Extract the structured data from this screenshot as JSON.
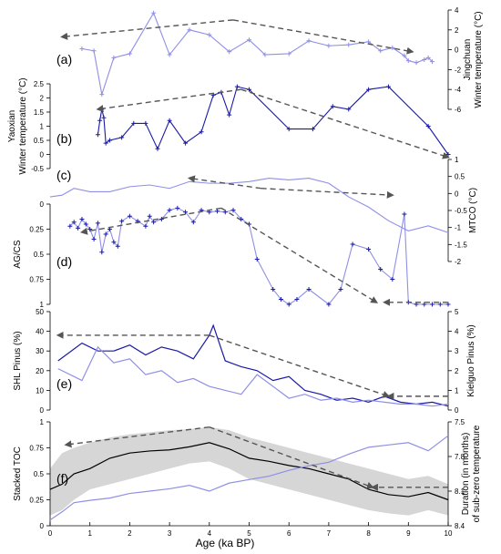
{
  "figure": {
    "xaxis": {
      "label": "Age (ka BP)",
      "ticks": [
        "0",
        "1",
        "2",
        "3",
        "4",
        "5",
        "6",
        "7",
        "8",
        "9",
        "10"
      ]
    },
    "colors": {
      "dark": "#1a1aa6",
      "light": "#8f8fe6",
      "gray": "#555555",
      "band": "#d6d6d6",
      "black": "#000000"
    }
  },
  "chart_data": [
    {
      "id": "a",
      "type": "line",
      "panel_label": "(a)",
      "ylabel": "Jingchuan\nWinter temperature (°C)",
      "yaxis_side": "right",
      "ylim": [
        -6,
        4
      ],
      "yticks": [
        "4",
        "2",
        "0",
        "-2",
        "-4",
        "-6"
      ],
      "color": "light",
      "series": [
        {
          "x": [
            0.8,
            1.1,
            1.3,
            1.6,
            2.0,
            2.6,
            3.0,
            3.5,
            4.0,
            4.5,
            5.0,
            5.4,
            6.0,
            6.5,
            7.0,
            7.5,
            8.0,
            8.3,
            8.6,
            8.9,
            9.0,
            9.2,
            9.4,
            9.5,
            9.6
          ],
          "y": [
            0.1,
            -0.1,
            -4.5,
            -0.8,
            -0.4,
            3.7,
            -0.5,
            2.0,
            1.5,
            -0.2,
            1.0,
            -0.5,
            -0.4,
            0.9,
            0.4,
            0.5,
            0.8,
            -0.1,
            0.2,
            -0.6,
            -1.1,
            -1.3,
            -1.0,
            -0.8,
            -1.2
          ]
        }
      ],
      "trend_arrows": [
        {
          "x": [
            4.6,
            0.3
          ],
          "y": [
            3.0,
            1.3
          ]
        },
        {
          "x": [
            4.6,
            9.1
          ],
          "y": [
            3.0,
            -0.2
          ]
        }
      ]
    },
    {
      "id": "b",
      "type": "line",
      "panel_label": "(b)",
      "ylabel": "Yaoxian\nWinter temperature (°C)",
      "yaxis_side": "left",
      "ylim": [
        -0.5,
        2.5
      ],
      "yticks": [
        "2.5",
        "2",
        "1.5",
        "1",
        "0.5",
        "0",
        "-0.5"
      ],
      "color": "dark",
      "series": [
        {
          "x": [
            1.2,
            1.25,
            1.3,
            1.35,
            1.4,
            1.5,
            1.8,
            2.1,
            2.4,
            2.7,
            3.0,
            3.4,
            3.8,
            4.1,
            4.3,
            4.5,
            4.7,
            5.0,
            6.0,
            6.6,
            7.1,
            7.5,
            8.0,
            8.5,
            9.5,
            10.0
          ],
          "y": [
            0.7,
            1.2,
            1.6,
            1.3,
            0.4,
            0.5,
            0.6,
            1.1,
            1.1,
            0.2,
            1.2,
            0.4,
            0.8,
            2.1,
            2.2,
            1.4,
            2.4,
            2.3,
            0.9,
            0.9,
            1.7,
            1.6,
            2.3,
            2.4,
            1.0,
            0.0
          ]
        }
      ],
      "trend_arrows": [
        {
          "x": [
            4.8,
            1.2
          ],
          "y": [
            2.3,
            1.6
          ]
        },
        {
          "x": [
            4.8,
            10.0
          ],
          "y": [
            2.3,
            -0.1
          ]
        }
      ]
    },
    {
      "id": "c",
      "type": "line",
      "panel_label": "(c)",
      "ylabel": "MTCO (°C)",
      "yaxis_side": "right",
      "ylim": [
        -2,
        1
      ],
      "yticks": [
        "1",
        "0.5",
        "0",
        "-0.5",
        "-1",
        "-1.5",
        "-2"
      ],
      "color": "light",
      "series": [
        {
          "x": [
            0.0,
            0.3,
            0.6,
            1.0,
            1.5,
            2.0,
            2.5,
            3.0,
            3.5,
            4.0,
            4.5,
            5.0,
            5.5,
            6.0,
            6.5,
            7.0,
            7.5,
            8.0,
            8.5,
            9.0,
            9.5,
            10.0
          ],
          "y": [
            -0.1,
            -0.05,
            0.15,
            0.05,
            0.05,
            0.2,
            0.25,
            0.15,
            0.35,
            0.3,
            0.3,
            0.35,
            0.45,
            0.4,
            0.45,
            0.3,
            -0.1,
            -0.4,
            -0.8,
            -1.1,
            -0.95,
            -1.15
          ]
        }
      ],
      "trend_arrows": [
        {
          "x": [
            5.3,
            3.5
          ],
          "y": [
            0.15,
            0.45
          ]
        },
        {
          "x": [
            5.3,
            8.6
          ],
          "y": [
            0.15,
            -0.05
          ]
        }
      ]
    },
    {
      "id": "d",
      "type": "line",
      "panel_label": "(d)",
      "ylabel": "AG/CS",
      "yaxis_side": "left",
      "ylim": [
        1,
        0
      ],
      "yticks": [
        "0",
        "0.25",
        "0.5",
        "0.75",
        "1"
      ],
      "color": "light",
      "markers_color": "dark",
      "series": [
        {
          "x": [
            0.5,
            0.6,
            0.7,
            0.8,
            0.9,
            1.0,
            1.1,
            1.2,
            1.3,
            1.4,
            1.5,
            1.6,
            1.7,
            1.8,
            2.0,
            2.2,
            2.4,
            2.5,
            2.6,
            2.8,
            3.0,
            3.2,
            3.4,
            3.6,
            3.8,
            4.0,
            4.2,
            4.4,
            4.6,
            4.8,
            5.0,
            5.2,
            5.6,
            5.8,
            6.0,
            6.2,
            6.5,
            7.0,
            7.3,
            7.6,
            8.0,
            8.3,
            8.6,
            8.9,
            9.0,
            9.2,
            9.4,
            9.6,
            9.8,
            10.0
          ],
          "y": [
            0.22,
            0.18,
            0.24,
            0.15,
            0.2,
            0.25,
            0.35,
            0.19,
            0.48,
            0.3,
            0.25,
            0.38,
            0.42,
            0.17,
            0.12,
            0.17,
            0.22,
            0.12,
            0.18,
            0.15,
            0.06,
            0.04,
            0.08,
            0.18,
            0.06,
            0.08,
            0.07,
            0.08,
            0.06,
            0.15,
            0.2,
            0.55,
            0.85,
            0.95,
            1.0,
            0.95,
            0.85,
            1.0,
            0.85,
            0.4,
            0.45,
            0.65,
            0.75,
            0.1,
            0.98,
            1.0,
            1.0,
            1.0,
            1.0,
            1.0
          ]
        }
      ],
      "trend_arrows": [
        {
          "x": [
            4.3,
            0.8
          ],
          "y": [
            0.04,
            0.28
          ]
        },
        {
          "x": [
            4.3,
            8.2
          ],
          "y": [
            0.04,
            0.98
          ]
        },
        {
          "x": [
            10.0,
            8.4
          ],
          "y": [
            0.98,
            0.98
          ]
        }
      ]
    },
    {
      "id": "e",
      "type": "line",
      "panel_label": "(e)",
      "ylabel": "SHL Pinus (%)",
      "yaxis_side": "left",
      "ylim": [
        0,
        50
      ],
      "yticks": [
        "50",
        "40",
        "30",
        "20",
        "10",
        "0"
      ],
      "y2label": "Kielguo Pinus (%)",
      "y2lim": [
        0,
        5
      ],
      "y2ticks": [
        "5",
        "4",
        "3",
        "2",
        "1",
        "0"
      ],
      "color": "dark",
      "series_names": [
        "SHL",
        "Kielguo"
      ],
      "series": [
        {
          "x": [
            0.2,
            0.8,
            1.2,
            1.6,
            2.0,
            2.4,
            2.8,
            3.2,
            3.6,
            4.0,
            4.1,
            4.4,
            4.8,
            5.2,
            5.6,
            6.0,
            6.4,
            6.8,
            7.2,
            7.6,
            8.0,
            8.4,
            8.8,
            9.2,
            9.6,
            10.0
          ],
          "y": [
            25,
            34,
            30,
            30,
            33,
            28,
            32,
            30,
            26,
            38,
            43,
            25,
            22,
            20,
            15,
            17,
            10,
            8,
            5,
            6,
            4,
            7,
            4,
            3,
            4,
            2
          ]
        },
        {
          "x": [
            0.2,
            0.8,
            1.2,
            1.6,
            2.0,
            2.4,
            2.8,
            3.2,
            3.6,
            4.0,
            4.4,
            4.8,
            5.2,
            5.6,
            6.0,
            6.4,
            6.8,
            7.2,
            7.6,
            8.0,
            8.4,
            8.8,
            9.2,
            9.6,
            10.0
          ],
          "y": [
            2.1,
            1.5,
            3.2,
            2.4,
            2.6,
            1.8,
            2.0,
            1.4,
            1.6,
            1.2,
            1.0,
            0.8,
            1.8,
            1.2,
            0.6,
            0.8,
            0.5,
            0.6,
            0.4,
            0.5,
            0.4,
            0.3,
            0.3,
            0.2,
            0.3
          ]
        }
      ],
      "trend_arrows": [
        {
          "x": [
            4.0,
            0.2
          ],
          "y": [
            38,
            38
          ]
        },
        {
          "x": [
            4.0,
            8.5
          ],
          "y": [
            38,
            7
          ]
        },
        {
          "x": [
            10.0,
            8.5
          ],
          "y": [
            7,
            7
          ]
        }
      ]
    },
    {
      "id": "f",
      "type": "line",
      "panel_label": "(f)",
      "ylabel": "Stacked TOC",
      "yaxis_side": "left",
      "ylim": [
        0,
        1
      ],
      "yticks": [
        "1",
        "0.75",
        "0.5",
        "0.25",
        "0"
      ],
      "y2label": "Duration (in months)\nof sub-zero temperature",
      "y2lim": [
        7.5,
        8.4
      ],
      "y2ticks": [
        "7.5",
        "7.8",
        "8.1",
        "8.4"
      ],
      "color": "black",
      "series_names": [
        "Stacked TOC",
        "Duration"
      ],
      "series": [
        {
          "x": [
            0.0,
            0.3,
            0.6,
            1.0,
            1.5,
            2.0,
            2.5,
            3.0,
            3.5,
            4.0,
            4.5,
            5.0,
            5.5,
            6.0,
            6.5,
            7.0,
            7.5,
            8.0,
            8.5,
            9.0,
            9.5,
            10.0
          ],
          "y": [
            0.35,
            0.4,
            0.5,
            0.55,
            0.65,
            0.7,
            0.72,
            0.73,
            0.76,
            0.8,
            0.74,
            0.65,
            0.62,
            0.58,
            0.55,
            0.5,
            0.45,
            0.35,
            0.3,
            0.28,
            0.32,
            0.25
          ]
        },
        {
          "x": [
            0.0,
            0.3,
            0.6,
            1.0,
            1.5,
            2.0,
            2.5,
            3.0,
            3.5,
            4.0,
            4.5,
            5.0,
            5.5,
            6.0,
            6.5,
            7.0,
            7.5,
            8.0,
            8.5,
            9.0,
            9.5,
            10.0
          ],
          "y": [
            7.55,
            7.62,
            7.7,
            7.72,
            7.74,
            7.78,
            7.8,
            7.82,
            7.85,
            7.8,
            7.87,
            7.9,
            7.93,
            7.98,
            8.02,
            8.05,
            8.12,
            8.18,
            8.2,
            8.22,
            8.15,
            8.28
          ]
        }
      ],
      "band": {
        "upper": [
          0.55,
          0.7,
          0.75,
          0.8,
          0.85,
          0.88,
          0.9,
          0.92,
          0.93,
          0.95,
          0.92,
          0.85,
          0.8,
          0.75,
          0.7,
          0.65,
          0.6,
          0.55,
          0.5,
          0.45,
          0.48,
          0.4
        ],
        "lower": [
          0.1,
          0.15,
          0.25,
          0.35,
          0.4,
          0.45,
          0.5,
          0.55,
          0.6,
          0.62,
          0.55,
          0.45,
          0.4,
          0.35,
          0.3,
          0.25,
          0.2,
          0.15,
          0.12,
          0.1,
          0.15,
          0.1
        ]
      },
      "trend_arrows": [
        {
          "x": [
            4.0,
            0.4
          ],
          "y": [
            0.95,
            0.78
          ]
        },
        {
          "x": [
            4.0,
            8.1
          ],
          "y": [
            0.95,
            0.37
          ]
        },
        {
          "x": [
            10.0,
            8.1
          ],
          "y": [
            0.37,
            0.37
          ]
        }
      ]
    }
  ]
}
